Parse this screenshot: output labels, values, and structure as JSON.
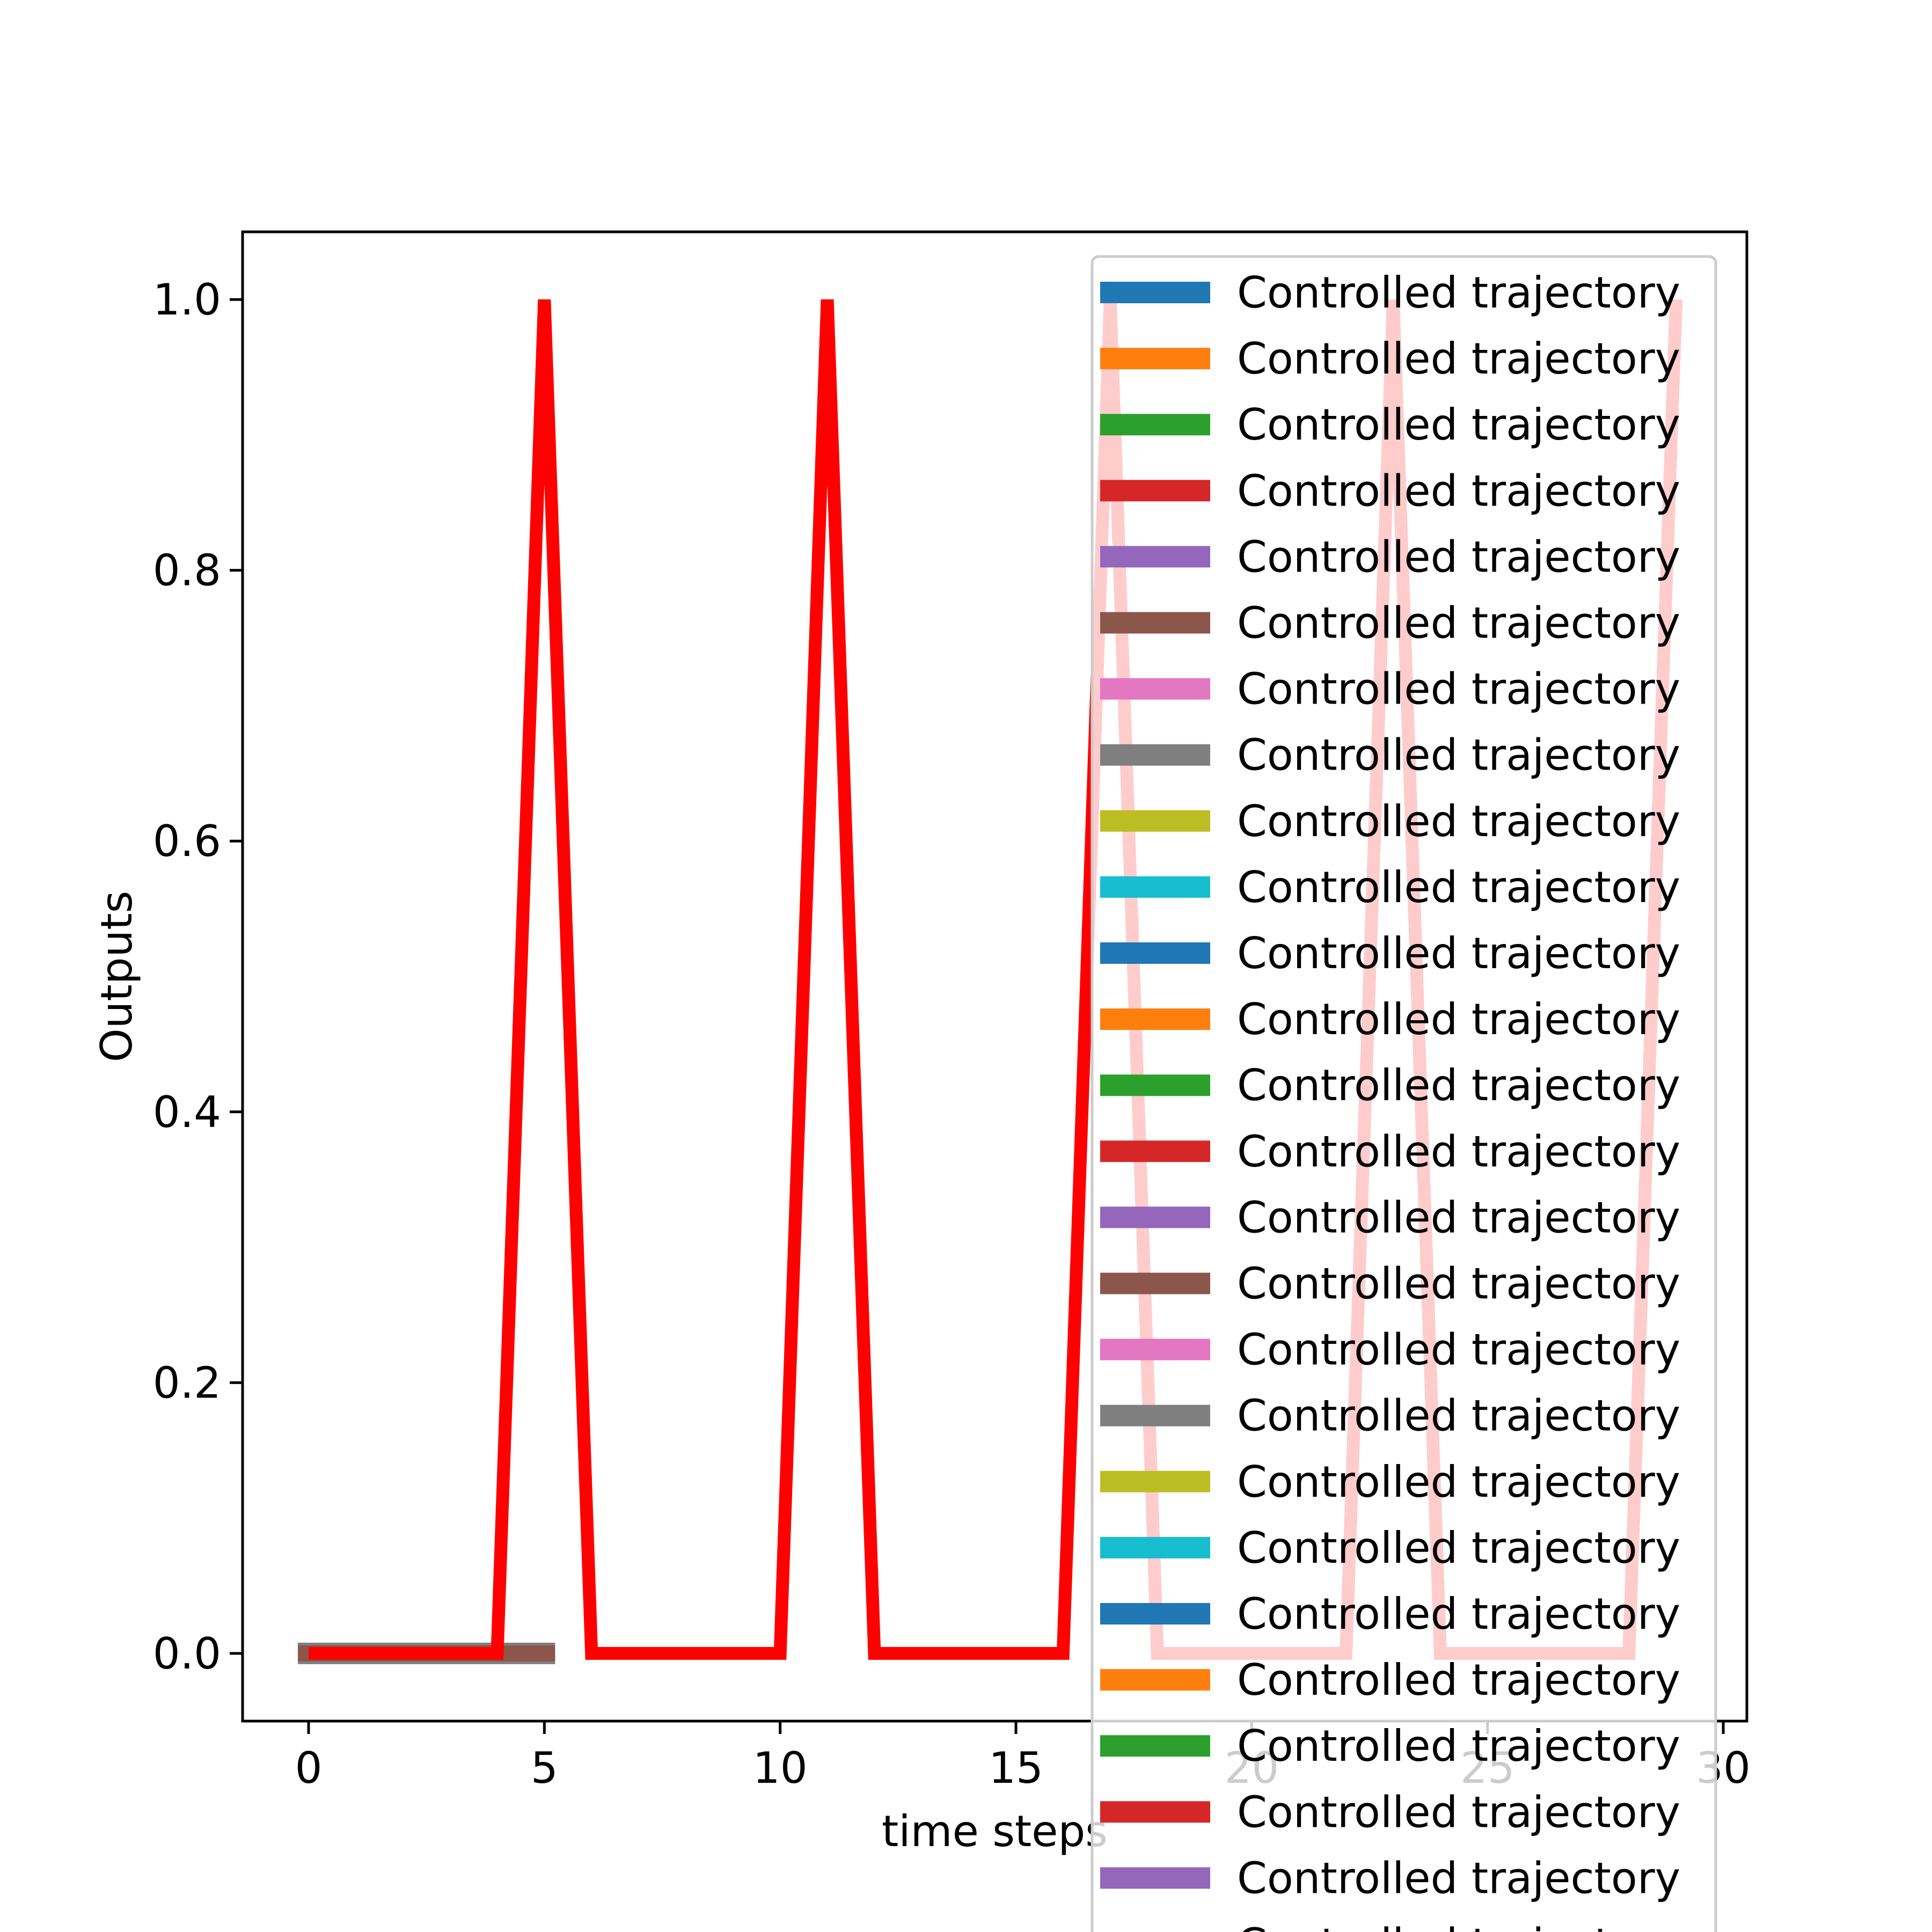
{
  "chart_data": {
    "type": "line",
    "title": "",
    "xlabel": "time steps",
    "ylabel": "Outputs",
    "xlim": [
      -1.4,
      30.5
    ],
    "ylim": [
      -0.05,
      1.05
    ],
    "xticks": [
      0,
      5,
      10,
      15,
      20,
      25,
      30
    ],
    "xtick_labels": [
      "0",
      "5",
      "10",
      "15",
      "20",
      "25",
      "30"
    ],
    "yticks": [
      0.0,
      0.2,
      0.4,
      0.6,
      0.8,
      1.0
    ],
    "ytick_labels": [
      "0.0",
      "0.2",
      "0.4",
      "0.6",
      "0.8",
      "1.0"
    ],
    "grid": false,
    "legend_position": "upper right",
    "base_series": {
      "x": [
        0,
        1,
        2,
        3,
        4,
        5
      ],
      "y": [
        0,
        0,
        0,
        0,
        0,
        0
      ],
      "color": "#8c564b"
    },
    "series": [
      {
        "x": [
          0,
          1,
          2,
          3,
          4,
          5,
          6,
          7,
          8,
          9,
          10,
          11,
          12,
          13,
          14,
          15,
          16,
          17,
          18,
          19,
          20,
          21,
          22,
          23,
          24,
          25,
          26,
          27,
          28,
          29
        ],
        "y": [
          0,
          0,
          0,
          0,
          0,
          1,
          0,
          0,
          0,
          0,
          0,
          1,
          0,
          0,
          0,
          0,
          0,
          1,
          0,
          0,
          0,
          0,
          0,
          1,
          0,
          0,
          0,
          0,
          0,
          1
        ],
        "color": "#ff0000"
      }
    ],
    "legend": {
      "entries": [
        {
          "label": "Controlled trajectory",
          "color": "#1f77b4"
        },
        {
          "label": "Controlled trajectory",
          "color": "#ff7f0e"
        },
        {
          "label": "Controlled trajectory",
          "color": "#2ca02c"
        },
        {
          "label": "Controlled trajectory",
          "color": "#d62728"
        },
        {
          "label": "Controlled trajectory",
          "color": "#9467bd"
        },
        {
          "label": "Controlled trajectory",
          "color": "#8c564b"
        },
        {
          "label": "Controlled trajectory",
          "color": "#e377c2"
        },
        {
          "label": "Controlled trajectory",
          "color": "#7f7f7f"
        },
        {
          "label": "Controlled trajectory",
          "color": "#bcbd22"
        },
        {
          "label": "Controlled trajectory",
          "color": "#17becf"
        },
        {
          "label": "Controlled trajectory",
          "color": "#1f77b4"
        },
        {
          "label": "Controlled trajectory",
          "color": "#ff7f0e"
        },
        {
          "label": "Controlled trajectory",
          "color": "#2ca02c"
        },
        {
          "label": "Controlled trajectory",
          "color": "#d62728"
        },
        {
          "label": "Controlled trajectory",
          "color": "#9467bd"
        },
        {
          "label": "Controlled trajectory",
          "color": "#8c564b"
        },
        {
          "label": "Controlled trajectory",
          "color": "#e377c2"
        },
        {
          "label": "Controlled trajectory",
          "color": "#7f7f7f"
        },
        {
          "label": "Controlled trajectory",
          "color": "#bcbd22"
        },
        {
          "label": "Controlled trajectory",
          "color": "#17becf"
        },
        {
          "label": "Controlled trajectory",
          "color": "#1f77b4"
        },
        {
          "label": "Controlled trajectory",
          "color": "#ff7f0e"
        },
        {
          "label": "Controlled trajectory",
          "color": "#2ca02c"
        },
        {
          "label": "Controlled trajectory",
          "color": "#d62728"
        },
        {
          "label": "Controlled trajectory",
          "color": "#9467bd"
        },
        {
          "label": "Controlled trajectory",
          "color": "#8c564b"
        }
      ]
    }
  }
}
